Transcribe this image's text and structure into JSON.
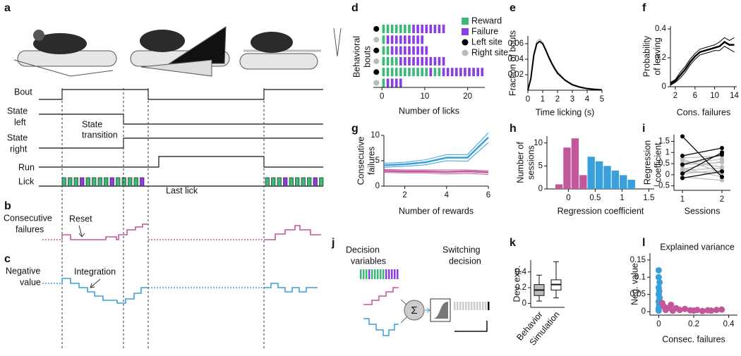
{
  "figure": {
    "letters": [
      "a",
      "b",
      "c",
      "d",
      "e",
      "f",
      "g",
      "h",
      "i",
      "j",
      "k",
      "l"
    ],
    "a": {
      "bout": "Bout",
      "state_left": [
        "State",
        "left"
      ],
      "state_right": [
        "State",
        "right"
      ],
      "run": "Run",
      "lick": "Lick",
      "state_transition": [
        "State",
        "transition"
      ],
      "last_lick": "Last lick"
    },
    "b": {
      "label": [
        "Consecutive",
        "failures"
      ],
      "annotation": "Reset"
    },
    "c": {
      "label": [
        "Negative",
        "value"
      ],
      "annotation": "Integration"
    },
    "j": {
      "left": [
        "Decision",
        "variables"
      ],
      "right": [
        "Switching",
        "decision"
      ],
      "sum": "Σ"
    }
  },
  "chart_data": [
    {
      "type": "raster",
      "xlabel": "Number of licks",
      "ylabel": [
        "Behavioral",
        "bouts"
      ],
      "xlim": [
        -2,
        24
      ],
      "xticks": [
        0,
        10,
        20
      ],
      "legend": [
        {
          "name": "Reward",
          "color": "#3cb878"
        },
        {
          "name": "Failure",
          "color": "#8a3fe0"
        },
        {
          "name": "Left site",
          "color": "#000000"
        },
        {
          "name": "Right site",
          "color": "#bbbbbb"
        }
      ],
      "bouts": [
        {
          "site": 2,
          "licks": [
            1,
            1,
            1,
            1,
            1,
            1,
            1,
            0,
            0,
            0,
            0,
            0,
            0,
            0,
            0
          ]
        },
        {
          "site": 3,
          "licks": [
            1,
            0,
            0,
            0,
            0,
            0,
            0,
            0,
            0,
            0
          ]
        },
        {
          "site": 2,
          "licks": [
            1,
            1,
            0,
            0,
            0,
            0,
            0,
            0,
            0,
            0,
            0
          ]
        },
        {
          "site": 3,
          "licks": [
            1,
            1,
            1,
            1,
            0,
            0,
            0,
            0,
            0,
            0,
            0,
            0,
            0,
            0,
            0
          ]
        },
        {
          "site": 2,
          "licks": [
            1,
            1,
            1,
            1,
            1,
            1,
            1,
            1,
            1,
            1,
            1,
            0,
            1,
            1,
            0,
            0,
            0,
            0,
            0,
            0,
            0,
            0,
            0,
            0
          ]
        },
        {
          "site": 3,
          "licks": [
            1,
            0,
            0,
            0,
            0
          ]
        }
      ]
    },
    {
      "type": "line",
      "xlabel": "Time licking (s)",
      "ylabel": "Fraction of bouts",
      "xlim": [
        0,
        5
      ],
      "xticks": [
        0,
        1,
        2,
        3,
        4,
        5
      ],
      "ylim": [
        0,
        0.07
      ],
      "yticks": [
        0.02,
        0.04,
        0.06
      ],
      "x": [
        0,
        0.2,
        0.4,
        0.6,
        0.8,
        1.0,
        1.2,
        1.4,
        1.6,
        1.8,
        2,
        2.5,
        3,
        3.5,
        4,
        4.5,
        5
      ],
      "series": [
        {
          "color": "#aaaaaa",
          "linewidth": 1,
          "values": [
            0,
            0.017,
            0.048,
            0.063,
            0.066,
            0.062,
            0.054,
            0.045,
            0.037,
            0.03,
            0.024,
            0.014,
            0.008,
            0.005,
            0.003,
            0.002,
            0.001
          ]
        },
        {
          "color": "#000000",
          "linewidth": 2,
          "values": [
            0,
            0.015,
            0.045,
            0.06,
            0.063,
            0.06,
            0.052,
            0.043,
            0.035,
            0.028,
            0.022,
            0.013,
            0.007,
            0.004,
            0.002,
            0.001,
            0.0005
          ]
        }
      ]
    },
    {
      "type": "line",
      "xlabel": "Cons. failures",
      "ylabel": [
        "Probability",
        "of leaving"
      ],
      "xlim": [
        1,
        14.5
      ],
      "xticks": [
        2,
        6,
        10,
        14
      ],
      "ylim": [
        0,
        0.42
      ],
      "yticks": [
        0,
        0.2,
        0.4
      ],
      "x": [
        1,
        2,
        3,
        4,
        5,
        6,
        7,
        8,
        9,
        10,
        11,
        12,
        13,
        14
      ],
      "series": [
        {
          "color": "#000000",
          "linewidth": 1,
          "values": [
            0.03,
            0.05,
            0.1,
            0.14,
            0.19,
            0.23,
            0.26,
            0.27,
            0.28,
            0.29,
            0.31,
            0.34,
            0.32,
            0.34
          ]
        },
        {
          "color": "#000000",
          "linewidth": 2.5,
          "values": [
            0.02,
            0.04,
            0.08,
            0.12,
            0.17,
            0.21,
            0.24,
            0.25,
            0.26,
            0.27,
            0.28,
            0.31,
            0.29,
            0.29
          ]
        },
        {
          "color": "#000000",
          "linewidth": 1,
          "values": [
            0.01,
            0.03,
            0.06,
            0.1,
            0.15,
            0.19,
            0.22,
            0.23,
            0.24,
            0.25,
            0.25,
            0.28,
            0.26,
            0.24
          ]
        }
      ]
    },
    {
      "type": "line",
      "xlabel": "Number of rewards",
      "ylabel": [
        "Consecutive",
        "failures"
      ],
      "xlim": [
        1,
        6
      ],
      "xticks": [
        2,
        4,
        6
      ],
      "ylim": [
        0,
        10
      ],
      "yticks": [
        0,
        5,
        10
      ],
      "x": [
        1,
        2,
        3,
        4,
        5,
        6
      ],
      "series": [
        {
          "color": "#3aa0dc",
          "linewidth": 1,
          "values": [
            4.5,
            4.7,
            5.2,
            6.2,
            6.2,
            10.5
          ]
        },
        {
          "color": "#3aa0dc",
          "linewidth": 2.5,
          "values": [
            4.1,
            4.3,
            4.7,
            5.6,
            5.6,
            9.6
          ]
        },
        {
          "color": "#3aa0dc",
          "linewidth": 1,
          "values": [
            3.7,
            3.9,
            4.2,
            5.0,
            4.9,
            8.6
          ]
        },
        {
          "color": "#c2579a",
          "linewidth": 1,
          "values": [
            3.3,
            3.2,
            3.2,
            3.2,
            3.2,
            3.0
          ]
        },
        {
          "color": "#c2579a",
          "linewidth": 2.5,
          "values": [
            3.0,
            2.9,
            2.9,
            2.8,
            2.9,
            2.7
          ]
        },
        {
          "color": "#c2579a",
          "linewidth": 1,
          "values": [
            2.7,
            2.6,
            2.6,
            2.4,
            2.5,
            2.3
          ]
        }
      ]
    },
    {
      "type": "histogram",
      "xlabel": "Regression coefficient",
      "ylabel": [
        "Number of",
        "sessions"
      ],
      "xlim": [
        -0.4,
        1.6
      ],
      "xticks": [
        0,
        0.5,
        1,
        1.5
      ],
      "ylim": [
        0,
        11.5
      ],
      "yticks": [
        0,
        5,
        10
      ],
      "bins": [
        -0.25,
        -0.1,
        0.05,
        0.2,
        0.35,
        0.5,
        0.65,
        0.8,
        0.95,
        1.1,
        1.25
      ],
      "counts": [
        1,
        9,
        11,
        3,
        7,
        6,
        5,
        4,
        3,
        2
      ],
      "colors": [
        "#c2579a",
        "#c2579a",
        "#c2579a",
        "#c2579a",
        "#3aa0dc",
        "#3aa0dc",
        "#3aa0dc",
        "#3aa0dc",
        "#3aa0dc",
        "#3aa0dc"
      ]
    },
    {
      "type": "paired",
      "xlabel": "Sessions",
      "ylabel": [
        "Regression",
        "coefficient"
      ],
      "categories": [
        "1",
        "2"
      ],
      "ylim": [
        -0.7,
        1.8
      ],
      "yticks": [
        {
          "value": -0.5,
          "label": "–0.5"
        },
        0,
        0.5,
        1,
        1.5
      ],
      "series": [
        {
          "color": "#bbbbbb",
          "values": [
            0.75,
            0.85
          ]
        },
        {
          "color": "#bbbbbb",
          "values": [
            0.7,
            0.1
          ]
        },
        {
          "color": "#bbbbbb",
          "values": [
            0.6,
            0.35
          ]
        },
        {
          "color": "#bbbbbb",
          "values": [
            0.45,
            0.55
          ]
        },
        {
          "color": "#bbbbbb",
          "values": [
            0.25,
            0.6
          ]
        },
        {
          "color": "#bbbbbb",
          "values": [
            0.2,
            0.3
          ]
        },
        {
          "color": "#bbbbbb",
          "values": [
            0.05,
            0.2
          ]
        },
        {
          "color": "#bbbbbb",
          "values": [
            -0.1,
            -0.25
          ]
        },
        {
          "color": "#bbbbbb",
          "values": [
            0.3,
            -0.1
          ]
        },
        {
          "color": "#bbbbbb",
          "values": [
            0.15,
            0.05
          ]
        },
        {
          "color": "#bbbbbb",
          "values": [
            0.5,
            0.7
          ]
        },
        {
          "color": "#000000",
          "values": [
            1.72,
            -0.1
          ]
        },
        {
          "color": "#000000",
          "values": [
            0.85,
            1.2
          ]
        },
        {
          "color": "#000000",
          "values": [
            0.45,
            0.9
          ]
        },
        {
          "color": "#000000",
          "values": [
            0.05,
            1.0
          ]
        },
        {
          "color": "#000000",
          "values": [
            -0.15,
            0.15
          ]
        }
      ]
    },
    {
      "type": "box",
      "ylabel": "Dev. exp.",
      "categories": [
        "Behavior",
        "Simulation"
      ],
      "ylim": [
        -0.05,
        0.55
      ],
      "yticks": [
        0,
        0.2,
        0.4
      ],
      "boxes": [
        {
          "color": "#bbbbbb",
          "min": 0.03,
          "q1": 0.1,
          "median": 0.17,
          "q3": 0.24,
          "max": 0.36
        },
        {
          "color": "#ffffff",
          "min": 0.07,
          "q1": 0.17,
          "median": 0.24,
          "q3": 0.3,
          "max": 0.53
        }
      ]
    },
    {
      "type": "scatter",
      "title": "Explained variance",
      "xlabel": "Consec. failures",
      "ylabel": "Neg. value",
      "xlim": [
        -0.05,
        0.45
      ],
      "xticks": [
        0,
        0.2,
        0.4
      ],
      "ylim": [
        -0.01,
        0.17
      ],
      "yticks": [
        0,
        0.05,
        0.1,
        0.15
      ],
      "series": [
        {
          "color": "#3aa0dc",
          "x": [
            0,
            0,
            0.005,
            0,
            0.003,
            0,
            0.005,
            0,
            0.002,
            0,
            0
          ],
          "y": [
            0.12,
            0.1,
            0.085,
            0.07,
            0.06,
            0.05,
            0.04,
            0.03,
            0.02,
            0.01,
            0.003
          ]
        },
        {
          "color": "#c2579a",
          "x": [
            0.02,
            0.03,
            0.05,
            0.07,
            0.1,
            0.12,
            0.15,
            0.18,
            0.2,
            0.22,
            0.25,
            0.28,
            0.3,
            0.33,
            0.36,
            0.04,
            0.08
          ],
          "y": [
            0.025,
            0.015,
            0.01,
            0.02,
            0.01,
            0.005,
            0.008,
            0.004,
            0.003,
            0.005,
            0.002,
            0.004,
            0.003,
            0.005,
            0.006,
            0.005,
            0.003
          ]
        }
      ]
    }
  ]
}
